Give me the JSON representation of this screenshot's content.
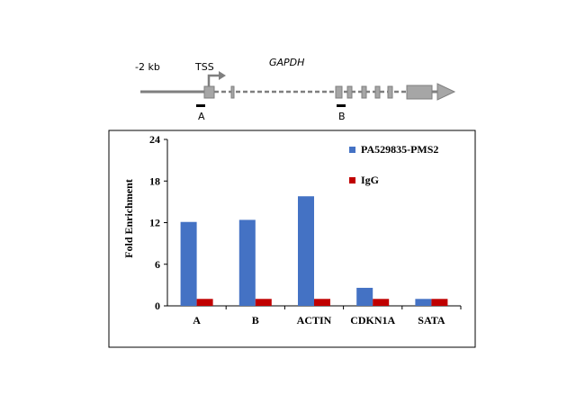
{
  "gene_diagram": {
    "upstream_label": "-2 kb",
    "tss_label": "TSS",
    "gene_name": "GAPDH",
    "primer_a_label": "A",
    "primer_b_label": "B"
  },
  "chart_data": {
    "type": "bar",
    "title": "",
    "xlabel": "",
    "ylabel": "Fold Enrichment",
    "ylim": [
      0,
      24
    ],
    "yticks": [
      "0",
      "6",
      "12",
      "18",
      "24"
    ],
    "categories": [
      "A",
      "B",
      "ACTIN",
      "CDKN1A",
      "SATA"
    ],
    "series": [
      {
        "name": "PA529835-PMS2",
        "color": "#4472C4",
        "values": [
          12.1,
          12.4,
          15.8,
          2.6,
          1.0
        ]
      },
      {
        "name": "IgG",
        "color": "#C00000",
        "values": [
          1.0,
          1.0,
          1.0,
          1.0,
          1.0
        ]
      }
    ],
    "legend_position": "top-right",
    "grid": false
  }
}
